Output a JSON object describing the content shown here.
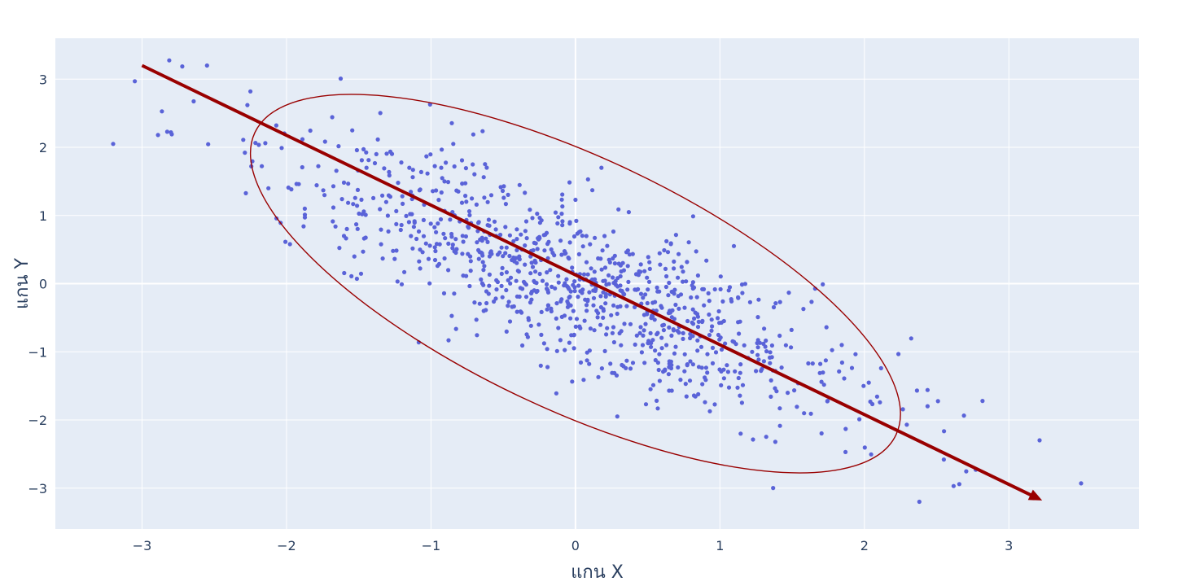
{
  "chart_data": {
    "type": "scatter",
    "xlabel": "แกน X",
    "ylabel": "แกน Y",
    "xlim": [
      -3.6,
      3.9
    ],
    "ylim": [
      -3.6,
      3.6
    ],
    "xticks": [
      -3,
      -2,
      -1,
      0,
      1,
      2,
      3
    ],
    "yticks": [
      -3,
      -2,
      -1,
      0,
      1,
      2,
      3
    ],
    "tick_labels_x": [
      "−3",
      "−2",
      "−1",
      "0",
      "1",
      "2",
      "3"
    ],
    "tick_labels_y": [
      "−3",
      "−2",
      "−1",
      "0",
      "1",
      "2",
      "3"
    ],
    "grid": true,
    "legend": "none",
    "point_count": 1000,
    "correlation": -0.8,
    "marker_color": "#5a63d8",
    "plot_bg": "#e5ecf6",
    "accent_color": "#990000",
    "outliers": [
      {
        "x": -3.2,
        "y": 2.05
      },
      {
        "x": -3.05,
        "y": 2.97
      },
      {
        "x": -2.55,
        "y": 3.2
      },
      {
        "x": -2.8,
        "y": 2.22
      },
      {
        "x": -2.25,
        "y": 2.82
      },
      {
        "x": 3.5,
        "y": -2.93
      },
      {
        "x": 2.38,
        "y": -3.2
      },
      {
        "x": 2.55,
        "y": -2.58
      },
      {
        "x": 0.18,
        "y": 1.7
      }
    ],
    "arrow": {
      "x0": -3.0,
      "y0": 3.2,
      "x1": 3.2,
      "y1": -3.15
    },
    "ellipse": {
      "cx": 0.0,
      "cy": 0.0,
      "x_extent": 3.1,
      "y_extent": 3.3,
      "angle_deg": -45
    }
  }
}
